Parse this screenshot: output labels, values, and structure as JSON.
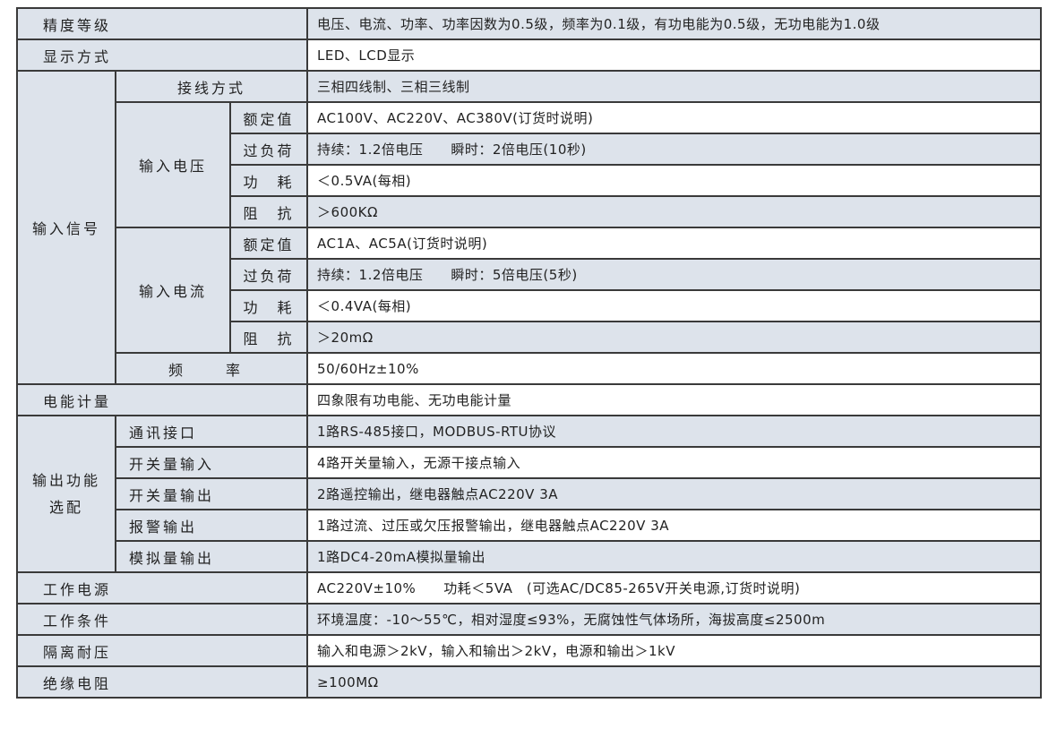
{
  "rows": {
    "accuracy": {
      "label": "精度等级",
      "value": "电压、电流、功率、功率因数为0.5级，频率为0.1级，有功电能为0.5级，无功电能为1.0级"
    },
    "display": {
      "label": "显示方式",
      "value": "LED、LCD显示"
    },
    "input_signal": {
      "label": "输入信号",
      "wiring": {
        "label": "接线方式",
        "value": "三相四线制、三相三线制"
      },
      "voltage": {
        "label": "输入电压",
        "rated": {
          "label": "额定值",
          "value": "AC100V、AC220V、AC380V(订货时说明)"
        },
        "overload": {
          "label": "过负荷",
          "value": "持续：1.2倍电压　　瞬时：2倍电压(10秒)"
        },
        "power": {
          "label": "功　耗",
          "value": "＜0.5VA(每相)"
        },
        "impedance": {
          "label": "阻　抗",
          "value": "＞600KΩ"
        }
      },
      "current": {
        "label": "输入电流",
        "rated": {
          "label": "额定值",
          "value": "AC1A、AC5A(订货时说明)"
        },
        "overload": {
          "label": "过负荷",
          "value": "持续：1.2倍电压　　瞬时：5倍电压(5秒)"
        },
        "power": {
          "label": "功　耗",
          "value": "＜0.4VA(每相)"
        },
        "impedance": {
          "label": "阻　抗",
          "value": "＞20mΩ"
        }
      },
      "frequency": {
        "label": "频　率",
        "value": "50/60Hz±10%"
      }
    },
    "energy": {
      "label": "电能计量",
      "value": "四象限有功电能、无功电能计量"
    },
    "output": {
      "label_line1": "输出功能",
      "label_line2": "选配",
      "items": [
        {
          "label": "通讯接口",
          "value": "1路RS-485接口，MODBUS-RTU协议"
        },
        {
          "label": "开关量输入",
          "value": "4路开关量输入，无源干接点输入"
        },
        {
          "label": "开关量输出",
          "value": "2路遥控输出，继电器触点AC220V 3A"
        },
        {
          "label": "报警输出",
          "value": "1路过流、过压或欠压报警输出，继电器触点AC220V 3A"
        },
        {
          "label": "模拟量输出",
          "value": "1路DC4-20mA模拟量输出"
        }
      ]
    },
    "power_supply": {
      "label": "工作电源",
      "value": "AC220V±10%　　功耗＜5VA　(可选AC/DC85-265V开关电源,订货时说明)"
    },
    "conditions": {
      "label": "工作条件",
      "value": "环境温度：-10～55℃，相对湿度≤93%，无腐蚀性气体场所，海拔高度≤2500m"
    },
    "isolation": {
      "label": "隔离耐压",
      "value": "输入和电源＞2kV，输入和输出＞2kV，电源和输出＞1kV"
    },
    "insulation": {
      "label": "绝缘电阻",
      "value": "≥100MΩ"
    }
  },
  "colors": {
    "shaded": "#dde3eb",
    "border": "#3a3a3a"
  }
}
